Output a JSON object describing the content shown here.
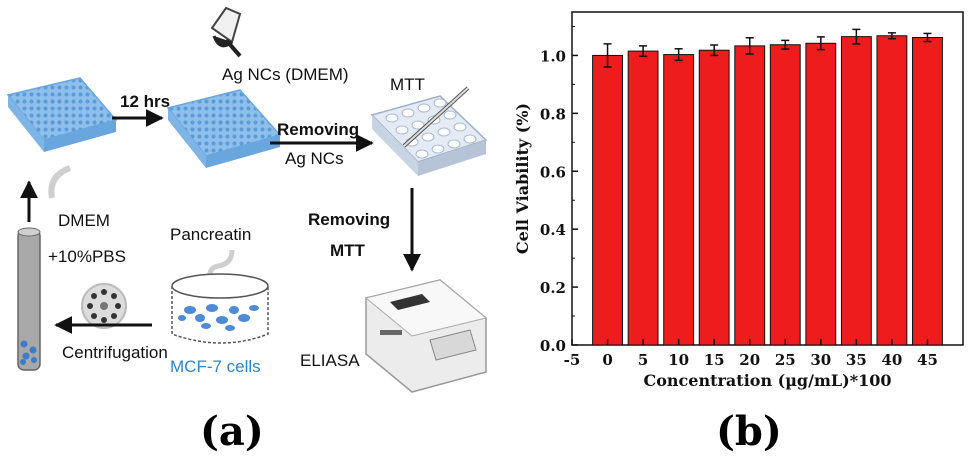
{
  "panel_a": {
    "label": "(a)",
    "arrow_12hrs": "12 hrs",
    "ag_ncs_dmem": "Ag NCs (DMEM)",
    "mtt": "MTT",
    "removing_ag_1": "Removing",
    "removing_ag_2": "Ag NCs",
    "removing_mtt_1": "Removing",
    "removing_mtt_2": "MTT",
    "eliasa": "ELIASA",
    "dmem_1": "DMEM",
    "dmem_2": "+10%PBS",
    "pancreatin": "Pancreatin",
    "centrifugation": "Centrifugation",
    "mcf7": "MCF-7 cells",
    "colors": {
      "plate_blue": "#9cc8ee",
      "text_blue": "#2e86c8",
      "arrow": "#111111"
    }
  },
  "panel_b": {
    "label": "(b)"
  },
  "chart_data": {
    "type": "bar",
    "ylabel": "Cell Viability (%)",
    "xlabel": "Concentration (µg/mL)*100",
    "x_ticks": [
      "-5",
      "0",
      "5",
      "10",
      "15",
      "20",
      "25",
      "30",
      "35",
      "40",
      "45"
    ],
    "y_ticks": [
      "0.0",
      "0.2",
      "0.4",
      "0.6",
      "0.8",
      "1.0"
    ],
    "xlim": [
      -5,
      50
    ],
    "ylim": [
      0,
      1.15
    ],
    "categories": [
      0,
      5,
      10,
      15,
      20,
      25,
      30,
      35,
      40,
      45
    ],
    "values": [
      1.0,
      1.015,
      1.003,
      1.018,
      1.033,
      1.037,
      1.042,
      1.065,
      1.068,
      1.062
    ],
    "errors": [
      0.04,
      0.018,
      0.02,
      0.018,
      0.028,
      0.015,
      0.022,
      0.025,
      0.01,
      0.014
    ],
    "bar_color": "#ee1c1c",
    "grid": false
  }
}
